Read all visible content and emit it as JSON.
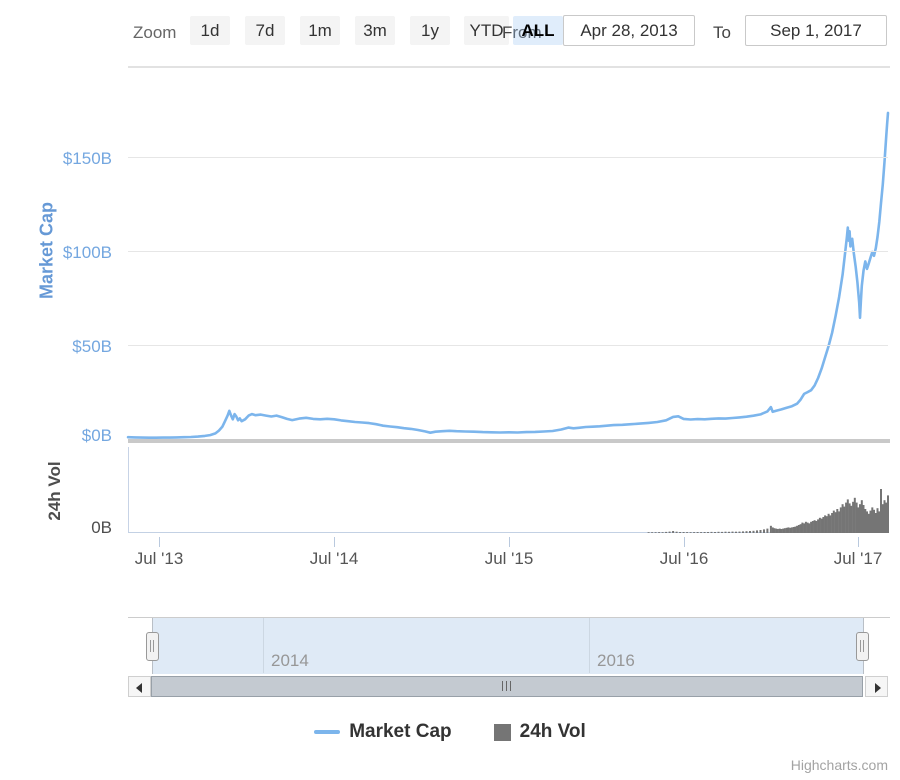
{
  "toolbar": {
    "zoom_label": "Zoom",
    "buttons": [
      {
        "label": "1d",
        "selected": false
      },
      {
        "label": "7d",
        "selected": false
      },
      {
        "label": "1m",
        "selected": false
      },
      {
        "label": "3m",
        "selected": false
      },
      {
        "label": "1y",
        "selected": false
      },
      {
        "label": "YTD",
        "selected": false
      },
      {
        "label": "ALL",
        "selected": true
      }
    ],
    "from_label": "From",
    "from_value": "Apr 28, 2013",
    "to_label": "To",
    "to_value": "Sep 1, 2017"
  },
  "colors": {
    "market_cap_line": "#7cb5ec",
    "volume_bar": "#757575",
    "navigator_line": "#4e7fba",
    "axis_label_blue": "#74a7e0",
    "gridline": "#e6e6e6"
  },
  "legend": {
    "items": [
      {
        "label": "Market Cap",
        "swatch": "line",
        "color": "#7cb5ec"
      },
      {
        "label": "24h Vol",
        "swatch": "square",
        "color": "#757575"
      }
    ]
  },
  "credits": "Highcharts.com",
  "chart_data": {
    "type": "line",
    "title": "",
    "x_unit": "decimal_year",
    "x_range": [
      2013.32,
      2017.67
    ],
    "panels": [
      {
        "ylabel": "Market Cap",
        "unit": "$B",
        "ylim": [
          0,
          195
        ],
        "yticks": [
          {
            "value": 150,
            "label": "$150B"
          },
          {
            "value": 100,
            "label": "$100B"
          },
          {
            "value": 50,
            "label": "$50B"
          },
          {
            "value": 0,
            "label": "$0B"
          }
        ]
      },
      {
        "ylabel": "24h Vol",
        "unit": "$B",
        "ylim": [
          0,
          10
        ],
        "yticks": [
          {
            "value": 0,
            "label": "0B"
          }
        ]
      }
    ],
    "x_ticks": [
      {
        "year": 2013.5,
        "label": "Jul '13"
      },
      {
        "year": 2014.5,
        "label": "Jul '14"
      },
      {
        "year": 2015.5,
        "label": "Jul '15"
      },
      {
        "year": 2016.5,
        "label": "Jul '16"
      },
      {
        "year": 2017.5,
        "label": "Jul '17"
      }
    ],
    "navigator": {
      "labels": [
        {
          "year": 2014,
          "label": "2014"
        },
        {
          "year": 2016,
          "label": "2016"
        }
      ]
    },
    "series": [
      {
        "name": "Market Cap",
        "type": "line",
        "panel": 0,
        "color": "#7cb5ec",
        "unit": "$B",
        "points": [
          [
            2013.32,
            1.5
          ],
          [
            2013.36,
            1.4
          ],
          [
            2013.4,
            1.3
          ],
          [
            2013.44,
            1.2
          ],
          [
            2013.48,
            1.2
          ],
          [
            2013.52,
            1.3
          ],
          [
            2013.56,
            1.3
          ],
          [
            2013.6,
            1.4
          ],
          [
            2013.64,
            1.5
          ],
          [
            2013.68,
            1.6
          ],
          [
            2013.72,
            1.8
          ],
          [
            2013.76,
            2.2
          ],
          [
            2013.79,
            2.6
          ],
          [
            2013.82,
            3.5
          ],
          [
            2013.84,
            5.0
          ],
          [
            2013.86,
            7.0
          ],
          [
            2013.875,
            10.0
          ],
          [
            2013.89,
            13.0
          ],
          [
            2013.9,
            15.5
          ],
          [
            2013.91,
            13.0
          ],
          [
            2013.92,
            11.0
          ],
          [
            2013.93,
            13.8
          ],
          [
            2013.94,
            12.5
          ],
          [
            2013.95,
            10.5
          ],
          [
            2013.96,
            11.5
          ],
          [
            2013.97,
            10.0
          ],
          [
            2013.99,
            11.0
          ],
          [
            2014.01,
            13.0
          ],
          [
            2014.03,
            13.8
          ],
          [
            2014.05,
            13.2
          ],
          [
            2014.08,
            13.5
          ],
          [
            2014.11,
            13.0
          ],
          [
            2014.14,
            12.5
          ],
          [
            2014.17,
            13.0
          ],
          [
            2014.2,
            12.2
          ],
          [
            2014.23,
            11.2
          ],
          [
            2014.26,
            10.6
          ],
          [
            2014.3,
            11.4
          ],
          [
            2014.34,
            11.8
          ],
          [
            2014.38,
            11.2
          ],
          [
            2014.42,
            11.0
          ],
          [
            2014.46,
            11.3
          ],
          [
            2014.5,
            11.0
          ],
          [
            2014.54,
            10.4
          ],
          [
            2014.58,
            10.0
          ],
          [
            2014.62,
            9.6
          ],
          [
            2014.66,
            9.3
          ],
          [
            2014.7,
            9.0
          ],
          [
            2014.74,
            8.4
          ],
          [
            2014.78,
            7.6
          ],
          [
            2014.82,
            7.2
          ],
          [
            2014.86,
            6.8
          ],
          [
            2014.9,
            6.3
          ],
          [
            2014.94,
            5.9
          ],
          [
            2014.98,
            5.3
          ],
          [
            2015.02,
            4.6
          ],
          [
            2015.05,
            3.9
          ],
          [
            2015.08,
            4.4
          ],
          [
            2015.12,
            4.7
          ],
          [
            2015.16,
            4.9
          ],
          [
            2015.2,
            4.7
          ],
          [
            2015.25,
            4.5
          ],
          [
            2015.3,
            4.4
          ],
          [
            2015.35,
            4.2
          ],
          [
            2015.4,
            4.1
          ],
          [
            2015.45,
            4.0
          ],
          [
            2015.5,
            4.1
          ],
          [
            2015.55,
            4.0
          ],
          [
            2015.6,
            4.2
          ],
          [
            2015.65,
            4.3
          ],
          [
            2015.7,
            4.5
          ],
          [
            2015.75,
            4.8
          ],
          [
            2015.8,
            5.6
          ],
          [
            2015.84,
            6.6
          ],
          [
            2015.87,
            6.2
          ],
          [
            2015.9,
            6.5
          ],
          [
            2015.94,
            6.9
          ],
          [
            2015.98,
            7.1
          ],
          [
            2016.02,
            7.3
          ],
          [
            2016.06,
            7.6
          ],
          [
            2016.1,
            7.9
          ],
          [
            2016.15,
            8.1
          ],
          [
            2016.2,
            8.4
          ],
          [
            2016.25,
            8.7
          ],
          [
            2016.3,
            9.1
          ],
          [
            2016.35,
            9.6
          ],
          [
            2016.4,
            10.5
          ],
          [
            2016.44,
            12.3
          ],
          [
            2016.47,
            12.6
          ],
          [
            2016.5,
            11.2
          ],
          [
            2016.54,
            10.9
          ],
          [
            2016.58,
            11.1
          ],
          [
            2016.62,
            11.0
          ],
          [
            2016.66,
            11.3
          ],
          [
            2016.7,
            11.5
          ],
          [
            2016.74,
            11.4
          ],
          [
            2016.78,
            11.7
          ],
          [
            2016.82,
            12.0
          ],
          [
            2016.86,
            12.4
          ],
          [
            2016.9,
            12.9
          ],
          [
            2016.94,
            13.6
          ],
          [
            2016.98,
            15.2
          ],
          [
            2017.0,
            17.5
          ],
          [
            2017.01,
            15.0
          ],
          [
            2017.03,
            15.6
          ],
          [
            2017.06,
            16.3
          ],
          [
            2017.09,
            17.2
          ],
          [
            2017.12,
            18.0
          ],
          [
            2017.15,
            19.3
          ],
          [
            2017.17,
            21.5
          ],
          [
            2017.19,
            24.5
          ],
          [
            2017.21,
            25.5
          ],
          [
            2017.23,
            26.5
          ],
          [
            2017.25,
            29.0
          ],
          [
            2017.27,
            33.0
          ],
          [
            2017.29,
            38.0
          ],
          [
            2017.31,
            44.0
          ],
          [
            2017.33,
            50.0
          ],
          [
            2017.35,
            57.0
          ],
          [
            2017.37,
            66.0
          ],
          [
            2017.39,
            76.0
          ],
          [
            2017.41,
            88.0
          ],
          [
            2017.425,
            100.0
          ],
          [
            2017.435,
            108.0
          ],
          [
            2017.44,
            113.0
          ],
          [
            2017.445,
            106.0
          ],
          [
            2017.45,
            111.0
          ],
          [
            2017.455,
            103.0
          ],
          [
            2017.465,
            107.0
          ],
          [
            2017.475,
            99.0
          ],
          [
            2017.485,
            92.0
          ],
          [
            2017.495,
            84.0
          ],
          [
            2017.505,
            73.0
          ],
          [
            2017.51,
            65.0
          ],
          [
            2017.515,
            74.0
          ],
          [
            2017.52,
            82.0
          ],
          [
            2017.53,
            90.0
          ],
          [
            2017.54,
            95.0
          ],
          [
            2017.55,
            91.0
          ],
          [
            2017.56,
            94.0
          ],
          [
            2017.57,
            97.0
          ],
          [
            2017.58,
            100.0
          ],
          [
            2017.59,
            98.0
          ],
          [
            2017.6,
            102.0
          ],
          [
            2017.61,
            108.0
          ],
          [
            2017.62,
            116.0
          ],
          [
            2017.63,
            126.0
          ],
          [
            2017.64,
            136.0
          ],
          [
            2017.65,
            148.0
          ],
          [
            2017.655,
            155.0
          ],
          [
            2017.66,
            162.0
          ],
          [
            2017.665,
            168.0
          ],
          [
            2017.67,
            174.0
          ]
        ]
      },
      {
        "name": "24h Vol",
        "type": "bar",
        "panel": 1,
        "color": "#757575",
        "unit": "$B",
        "points": [
          [
            2016.3,
            0.1
          ],
          [
            2016.32,
            0.08
          ],
          [
            2016.34,
            0.09
          ],
          [
            2016.36,
            0.11
          ],
          [
            2016.38,
            0.1
          ],
          [
            2016.4,
            0.14
          ],
          [
            2016.42,
            0.18
          ],
          [
            2016.44,
            0.25
          ],
          [
            2016.46,
            0.16
          ],
          [
            2016.48,
            0.13
          ],
          [
            2016.5,
            0.12
          ],
          [
            2016.52,
            0.11
          ],
          [
            2016.54,
            0.1
          ],
          [
            2016.56,
            0.11
          ],
          [
            2016.58,
            0.12
          ],
          [
            2016.6,
            0.11
          ],
          [
            2016.62,
            0.13
          ],
          [
            2016.64,
            0.12
          ],
          [
            2016.66,
            0.14
          ],
          [
            2016.68,
            0.13
          ],
          [
            2016.7,
            0.15
          ],
          [
            2016.72,
            0.14
          ],
          [
            2016.74,
            0.16
          ],
          [
            2016.76,
            0.15
          ],
          [
            2016.78,
            0.17
          ],
          [
            2016.8,
            0.16
          ],
          [
            2016.82,
            0.18
          ],
          [
            2016.84,
            0.2
          ],
          [
            2016.86,
            0.22
          ],
          [
            2016.88,
            0.25
          ],
          [
            2016.9,
            0.28
          ],
          [
            2016.92,
            0.32
          ],
          [
            2016.94,
            0.38
          ],
          [
            2016.96,
            0.45
          ],
          [
            2016.98,
            0.55
          ],
          [
            2017.0,
            0.9
          ],
          [
            2017.01,
            0.7
          ],
          [
            2017.02,
            0.6
          ],
          [
            2017.03,
            0.55
          ],
          [
            2017.04,
            0.5
          ],
          [
            2017.05,
            0.55
          ],
          [
            2017.06,
            0.5
          ],
          [
            2017.07,
            0.55
          ],
          [
            2017.08,
            0.6
          ],
          [
            2017.09,
            0.65
          ],
          [
            2017.1,
            0.7
          ],
          [
            2017.11,
            0.65
          ],
          [
            2017.12,
            0.7
          ],
          [
            2017.13,
            0.75
          ],
          [
            2017.14,
            0.8
          ],
          [
            2017.15,
            0.9
          ],
          [
            2017.16,
            1.0
          ],
          [
            2017.17,
            1.1
          ],
          [
            2017.18,
            1.3
          ],
          [
            2017.19,
            1.2
          ],
          [
            2017.2,
            1.4
          ],
          [
            2017.21,
            1.3
          ],
          [
            2017.22,
            1.2
          ],
          [
            2017.23,
            1.4
          ],
          [
            2017.24,
            1.5
          ],
          [
            2017.25,
            1.6
          ],
          [
            2017.26,
            1.5
          ],
          [
            2017.27,
            1.7
          ],
          [
            2017.28,
            1.9
          ],
          [
            2017.29,
            1.8
          ],
          [
            2017.3,
            2.0
          ],
          [
            2017.31,
            2.2
          ],
          [
            2017.32,
            2.1
          ],
          [
            2017.33,
            2.4
          ],
          [
            2017.34,
            2.2
          ],
          [
            2017.35,
            2.5
          ],
          [
            2017.36,
            2.8
          ],
          [
            2017.37,
            2.6
          ],
          [
            2017.38,
            3.0
          ],
          [
            2017.39,
            2.7
          ],
          [
            2017.4,
            3.2
          ],
          [
            2017.41,
            3.6
          ],
          [
            2017.42,
            3.3
          ],
          [
            2017.43,
            3.8
          ],
          [
            2017.44,
            4.2
          ],
          [
            2017.45,
            3.7
          ],
          [
            2017.46,
            3.4
          ],
          [
            2017.47,
            3.9
          ],
          [
            2017.48,
            4.4
          ],
          [
            2017.49,
            3.8
          ],
          [
            2017.5,
            3.2
          ],
          [
            2017.51,
            3.6
          ],
          [
            2017.52,
            4.1
          ],
          [
            2017.53,
            3.5
          ],
          [
            2017.54,
            3.0
          ],
          [
            2017.55,
            2.7
          ],
          [
            2017.56,
            2.4
          ],
          [
            2017.57,
            2.8
          ],
          [
            2017.58,
            3.2
          ],
          [
            2017.59,
            2.9
          ],
          [
            2017.6,
            2.5
          ],
          [
            2017.61,
            3.1
          ],
          [
            2017.62,
            2.7
          ],
          [
            2017.63,
            5.5
          ],
          [
            2017.64,
            3.6
          ],
          [
            2017.65,
            4.1
          ],
          [
            2017.66,
            3.8
          ],
          [
            2017.67,
            4.7
          ]
        ]
      }
    ]
  }
}
